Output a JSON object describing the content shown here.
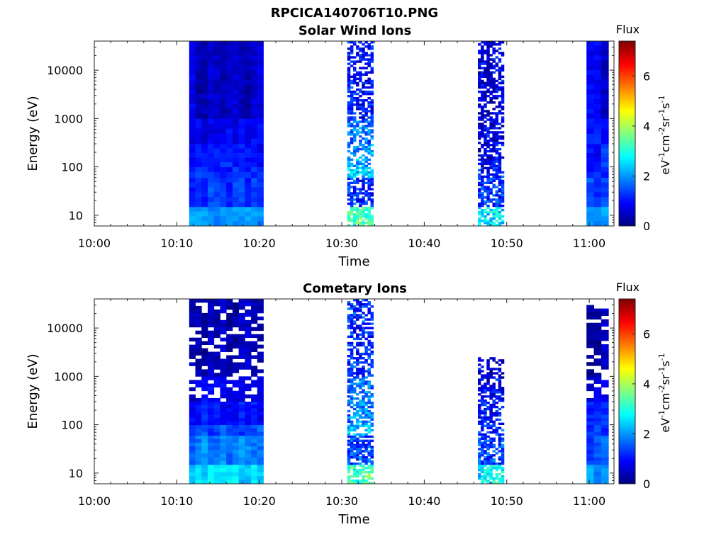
{
  "figure_title": "RPCICA140706T10.PNG",
  "colorbar": {
    "title": "Flux",
    "label_parts": [
      "eV",
      "-1",
      "cm",
      "-2",
      "sr",
      "-1",
      "s",
      "-1"
    ],
    "ticks": [
      "0",
      "2",
      "4",
      "6"
    ],
    "range": [
      0,
      7.4
    ],
    "colormap": "jet"
  },
  "colors": {
    "jet": [
      "#00007f",
      "#0000ff",
      "#007fff",
      "#00ffff",
      "#7fff7f",
      "#ffff00",
      "#ff7f00",
      "#ff0000",
      "#7f0000"
    ]
  },
  "chart_data": [
    {
      "type": "heatmap",
      "title": "Solar Wind Ions",
      "xlabel": "Time",
      "ylabel": "Energy (eV)",
      "x_ticks": [
        "10:00",
        "10:10",
        "10:20",
        "10:30",
        "10:40",
        "10:50",
        "11:00"
      ],
      "y_ticks": [
        "10",
        "100",
        "1000",
        "10000"
      ],
      "y_scale": "log",
      "xlim": [
        "10:00",
        "11:03"
      ],
      "ylim": [
        6,
        40000
      ],
      "blocks": [
        {
          "start": "10:11:30",
          "end": "10:20:30",
          "pattern": "solid",
          "profile": [
            [
              6,
              15,
              2.0
            ],
            [
              15,
              60,
              1.3
            ],
            [
              60,
              100,
              1.25
            ],
            [
              100,
              300,
              1.0
            ],
            [
              300,
              1000,
              0.75
            ],
            [
              1000,
              40000,
              0.55
            ]
          ]
        },
        {
          "start": "10:30:40",
          "end": "10:33:50",
          "pattern": "sparse",
          "profile": [
            [
              6,
              15,
              3.2
            ],
            [
              15,
              60,
              1.2
            ],
            [
              60,
              100,
              2.5
            ],
            [
              100,
              300,
              1.9
            ],
            [
              300,
              1000,
              1.8
            ],
            [
              1000,
              40000,
              1.0
            ]
          ]
        },
        {
          "start": "10:46:30",
          "end": "10:49:40",
          "pattern": "sparse",
          "profile": [
            [
              6,
              15,
              2.6
            ],
            [
              15,
              60,
              1.2
            ],
            [
              60,
              100,
              1.0
            ],
            [
              100,
              300,
              0.8
            ],
            [
              300,
              1000,
              0.7
            ],
            [
              1000,
              40000,
              0.6
            ]
          ]
        },
        {
          "start": "10:59:40",
          "end": "11:02:20",
          "pattern": "solid",
          "profile": [
            [
              6,
              15,
              1.9
            ],
            [
              15,
              60,
              1.3
            ],
            [
              60,
              100,
              1.2
            ],
            [
              100,
              300,
              1.1
            ],
            [
              300,
              1000,
              1.0
            ],
            [
              1000,
              40000,
              0.7
            ]
          ]
        }
      ]
    },
    {
      "type": "heatmap",
      "title": "Cometary Ions",
      "xlabel": "Time",
      "ylabel": "Energy (eV)",
      "x_ticks": [
        "10:00",
        "10:10",
        "10:20",
        "10:30",
        "10:40",
        "10:50",
        "11:00"
      ],
      "y_ticks": [
        "10",
        "100",
        "1000",
        "10000"
      ],
      "y_scale": "log",
      "xlim": [
        "10:00",
        "11:03"
      ],
      "ylim": [
        6,
        40000
      ],
      "blocks": [
        {
          "start": "10:11:30",
          "end": "10:20:30",
          "pattern": "banded",
          "profile": [
            [
              6,
              15,
              2.5
            ],
            [
              15,
              60,
              1.8
            ],
            [
              60,
              100,
              1.4
            ],
            [
              100,
              300,
              1.0
            ],
            [
              300,
              1000,
              0.7
            ],
            [
              1000,
              40000,
              0.4
            ]
          ]
        },
        {
          "start": "10:30:40",
          "end": "10:33:50",
          "pattern": "sparse",
          "profile": [
            [
              6,
              15,
              3.3
            ],
            [
              15,
              60,
              1.4
            ],
            [
              60,
              100,
              2.3
            ],
            [
              100,
              300,
              1.9
            ],
            [
              300,
              1000,
              1.8
            ],
            [
              1000,
              40000,
              1.1
            ]
          ]
        },
        {
          "start": "10:46:30",
          "end": "10:49:40",
          "pattern": "sparse",
          "top": 2500,
          "profile": [
            [
              6,
              15,
              2.7
            ],
            [
              15,
              60,
              1.4
            ],
            [
              60,
              100,
              1.3
            ],
            [
              100,
              300,
              1.0
            ],
            [
              300,
              1000,
              0.8
            ],
            [
              1000,
              2500,
              0.7
            ]
          ]
        },
        {
          "start": "10:59:40",
          "end": "11:02:20",
          "pattern": "banded",
          "top": 30000,
          "profile": [
            [
              6,
              15,
              2.0
            ],
            [
              15,
              60,
              1.5
            ],
            [
              60,
              100,
              1.4
            ],
            [
              100,
              300,
              1.2
            ],
            [
              300,
              1000,
              0.6
            ],
            [
              1000,
              30000,
              0.4
            ]
          ]
        }
      ]
    }
  ]
}
